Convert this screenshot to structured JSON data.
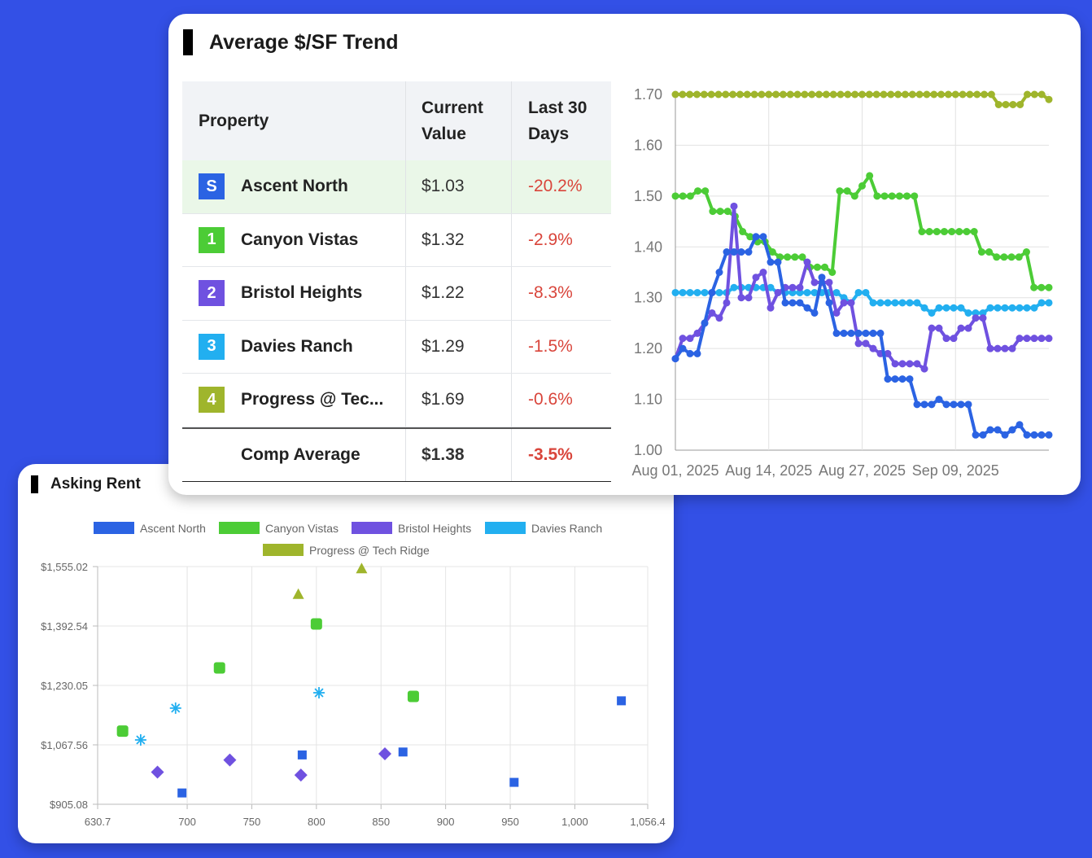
{
  "trend_card": {
    "title": "Average $/SF Trend",
    "table": {
      "headers": [
        "Property",
        "Current Value",
        "Last 30 Days"
      ],
      "rows": [
        {
          "badge": "S",
          "badge_color": "#2b63e3",
          "name": "Ascent North",
          "current": "$1.03",
          "change": "-20.2%"
        },
        {
          "badge": "1",
          "badge_color": "#4ccc36",
          "name": "Canyon Vistas",
          "current": "$1.32",
          "change": "-2.9%"
        },
        {
          "badge": "2",
          "badge_color": "#6f51e0",
          "name": "Bristol Heights",
          "current": "$1.22",
          "change": "-8.3%"
        },
        {
          "badge": "3",
          "badge_color": "#22aff0",
          "name": "Davies Ranch",
          "current": "$1.29",
          "change": "-1.5%"
        },
        {
          "badge": "4",
          "badge_color": "#9fb52c",
          "name": "Progress @ Tec...",
          "current": "$1.69",
          "change": "-0.6%"
        }
      ],
      "average": {
        "name": "Comp Average",
        "current": "$1.38",
        "change": "-3.5%"
      }
    }
  },
  "chart_data": [
    {
      "type": "line",
      "y_tick_labels": [
        "1.00",
        "1.10",
        "1.20",
        "1.30",
        "1.40",
        "1.50",
        "1.60",
        "1.70"
      ],
      "x_tick_labels": [
        "Aug 01, 2025",
        "Aug 14, 2025",
        "Aug 27, 2025",
        "Sep 09, 2025"
      ],
      "ylim": [
        1.0,
        1.7
      ],
      "x_range_days": [
        0,
        52
      ],
      "series": [
        {
          "name": "Progress @ Tech Ridge",
          "color": "#9fb52c",
          "values": [
            1.7,
            1.7,
            1.7,
            1.7,
            1.7,
            1.7,
            1.7,
            1.7,
            1.7,
            1.7,
            1.7,
            1.7,
            1.7,
            1.7,
            1.7,
            1.7,
            1.7,
            1.7,
            1.7,
            1.7,
            1.7,
            1.7,
            1.7,
            1.7,
            1.7,
            1.7,
            1.7,
            1.7,
            1.7,
            1.7,
            1.7,
            1.7,
            1.7,
            1.7,
            1.7,
            1.7,
            1.7,
            1.7,
            1.7,
            1.7,
            1.7,
            1.7,
            1.7,
            1.7,
            1.7,
            1.68,
            1.68,
            1.68,
            1.68,
            1.7,
            1.7,
            1.7,
            1.69
          ]
        },
        {
          "name": "Canyon Vistas",
          "color": "#4ccc36",
          "values": [
            1.5,
            1.5,
            1.5,
            1.51,
            1.51,
            1.47,
            1.47,
            1.47,
            1.46,
            1.43,
            1.42,
            1.41,
            1.41,
            1.39,
            1.38,
            1.38,
            1.38,
            1.38,
            1.36,
            1.36,
            1.36,
            1.35,
            1.51,
            1.51,
            1.5,
            1.52,
            1.54,
            1.5,
            1.5,
            1.5,
            1.5,
            1.5,
            1.5,
            1.43,
            1.43,
            1.43,
            1.43,
            1.43,
            1.43,
            1.43,
            1.43,
            1.39,
            1.39,
            1.38,
            1.38,
            1.38,
            1.38,
            1.39,
            1.32,
            1.32,
            1.32
          ]
        },
        {
          "name": "Davies Ranch",
          "color": "#22aff0",
          "values": [
            1.31,
            1.31,
            1.31,
            1.31,
            1.31,
            1.31,
            1.31,
            1.31,
            1.32,
            1.32,
            1.32,
            1.32,
            1.32,
            1.32,
            1.31,
            1.31,
            1.31,
            1.31,
            1.31,
            1.31,
            1.31,
            1.31,
            1.31,
            1.3,
            1.29,
            1.31,
            1.31,
            1.29,
            1.29,
            1.29,
            1.29,
            1.29,
            1.29,
            1.29,
            1.28,
            1.27,
            1.28,
            1.28,
            1.28,
            1.28,
            1.27,
            1.27,
            1.27,
            1.28,
            1.28,
            1.28,
            1.28,
            1.28,
            1.28,
            1.28,
            1.29,
            1.29
          ]
        },
        {
          "name": "Bristol Heights",
          "color": "#6f51e0",
          "values": [
            1.18,
            1.22,
            1.22,
            1.23,
            1.25,
            1.27,
            1.26,
            1.29,
            1.48,
            1.3,
            1.3,
            1.34,
            1.35,
            1.28,
            1.31,
            1.32,
            1.32,
            1.32,
            1.37,
            1.33,
            1.33,
            1.33,
            1.27,
            1.29,
            1.29,
            1.21,
            1.21,
            1.2,
            1.19,
            1.19,
            1.17,
            1.17,
            1.17,
            1.17,
            1.16,
            1.24,
            1.24,
            1.22,
            1.22,
            1.24,
            1.24,
            1.26,
            1.26,
            1.2,
            1.2,
            1.2,
            1.2,
            1.22,
            1.22,
            1.22,
            1.22,
            1.22
          ]
        },
        {
          "name": "Ascent North",
          "color": "#2b63e3",
          "values": [
            1.18,
            1.2,
            1.19,
            1.19,
            1.25,
            1.31,
            1.35,
            1.39,
            1.39,
            1.39,
            1.39,
            1.42,
            1.42,
            1.37,
            1.37,
            1.29,
            1.29,
            1.29,
            1.28,
            1.27,
            1.34,
            1.29,
            1.23,
            1.23,
            1.23,
            1.23,
            1.23,
            1.23,
            1.23,
            1.14,
            1.14,
            1.14,
            1.14,
            1.09,
            1.09,
            1.09,
            1.1,
            1.09,
            1.09,
            1.09,
            1.09,
            1.03,
            1.03,
            1.04,
            1.04,
            1.03,
            1.04,
            1.05,
            1.03,
            1.03,
            1.03,
            1.03
          ]
        }
      ]
    },
    {
      "type": "scatter",
      "title": "Asking Rent",
      "x_tick_labels": [
        "630.7",
        "700",
        "750",
        "800",
        "850",
        "900",
        "950",
        "1,000",
        "1,056.4"
      ],
      "y_tick_labels": [
        "$905.08",
        "$1,067.56",
        "$1,230.05",
        "$1,392.54",
        "$1,555.02"
      ],
      "xlim": [
        630.7,
        1056.4
      ],
      "ylim": [
        905.08,
        1555.02
      ],
      "series": [
        {
          "name": "Ascent North",
          "color": "#2b63e3",
          "marker": "square",
          "points": [
            [
              696,
              936
            ],
            [
              789,
              1040
            ],
            [
              867,
              1048
            ],
            [
              953,
              965
            ],
            [
              1036,
              1188
            ]
          ]
        },
        {
          "name": "Canyon Vistas",
          "color": "#4ccc36",
          "marker": "rounded-square",
          "points": [
            [
              650,
              1105
            ],
            [
              725,
              1278
            ],
            [
              800,
              1398
            ],
            [
              875,
              1200
            ]
          ]
        },
        {
          "name": "Bristol Heights",
          "color": "#6f51e0",
          "marker": "diamond",
          "points": [
            [
              677,
              993
            ],
            [
              733,
              1026
            ],
            [
              788,
              985
            ],
            [
              853,
              1043
            ]
          ]
        },
        {
          "name": "Davies Ranch",
          "color": "#22aff0",
          "marker": "star",
          "points": [
            [
              664,
              1081
            ],
            [
              691,
              1168
            ],
            [
              802,
              1210
            ]
          ]
        },
        {
          "name": "Progress @ Tech Ridge",
          "color": "#9fb52c",
          "marker": "triangle",
          "points": [
            [
              786,
              1480
            ],
            [
              835,
              1550
            ]
          ]
        }
      ]
    }
  ]
}
